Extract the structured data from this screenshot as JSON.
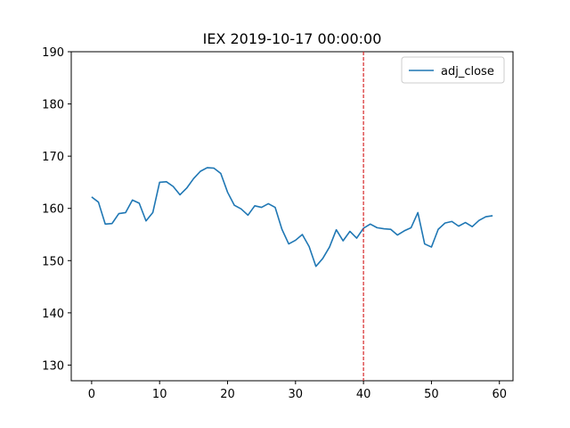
{
  "chart_data": {
    "type": "line",
    "title": "IEX 2019-10-17 00:00:00",
    "xlabel": "",
    "ylabel": "",
    "xlim": [
      -3,
      62
    ],
    "ylim": [
      127,
      190
    ],
    "xticks": [
      0,
      10,
      20,
      30,
      40,
      50,
      60
    ],
    "yticks": [
      130,
      140,
      150,
      160,
      170,
      180,
      190
    ],
    "grid": false,
    "legend_position": "top-right",
    "series": [
      {
        "name": "adj_close",
        "color": "#1f77b4",
        "x": [
          0,
          1,
          2,
          3,
          4,
          5,
          6,
          7,
          8,
          9,
          10,
          11,
          12,
          13,
          14,
          15,
          16,
          17,
          18,
          19,
          20,
          21,
          22,
          23,
          24,
          25,
          26,
          27,
          28,
          29,
          30,
          31,
          32,
          33,
          34,
          35,
          36,
          37,
          38,
          39,
          40,
          41,
          42,
          43,
          44,
          45,
          46,
          47,
          48,
          49,
          50,
          51,
          52,
          53,
          54,
          55,
          56,
          57,
          58,
          59
        ],
        "values": [
          162.2,
          161.2,
          157.0,
          157.1,
          159.0,
          159.2,
          161.6,
          161.0,
          157.6,
          159.2,
          165.0,
          165.1,
          164.2,
          162.6,
          163.9,
          165.7,
          167.1,
          167.8,
          167.7,
          166.7,
          163.1,
          160.6,
          159.9,
          158.7,
          160.5,
          160.2,
          160.9,
          160.2,
          156.0,
          153.2,
          153.9,
          155.0,
          152.7,
          148.9,
          150.4,
          152.6,
          155.9,
          153.8,
          155.6,
          154.3,
          156.2,
          157.0,
          156.3,
          156.1,
          156.0,
          154.9,
          155.7,
          156.3,
          159.2,
          153.2,
          152.6,
          156.0,
          157.2,
          157.5,
          156.6,
          157.3,
          156.5,
          157.7,
          158.4,
          158.6
        ]
      }
    ],
    "annotations": [
      {
        "type": "vline",
        "x": 40,
        "color": "#d62728",
        "style": "dashed"
      }
    ]
  }
}
